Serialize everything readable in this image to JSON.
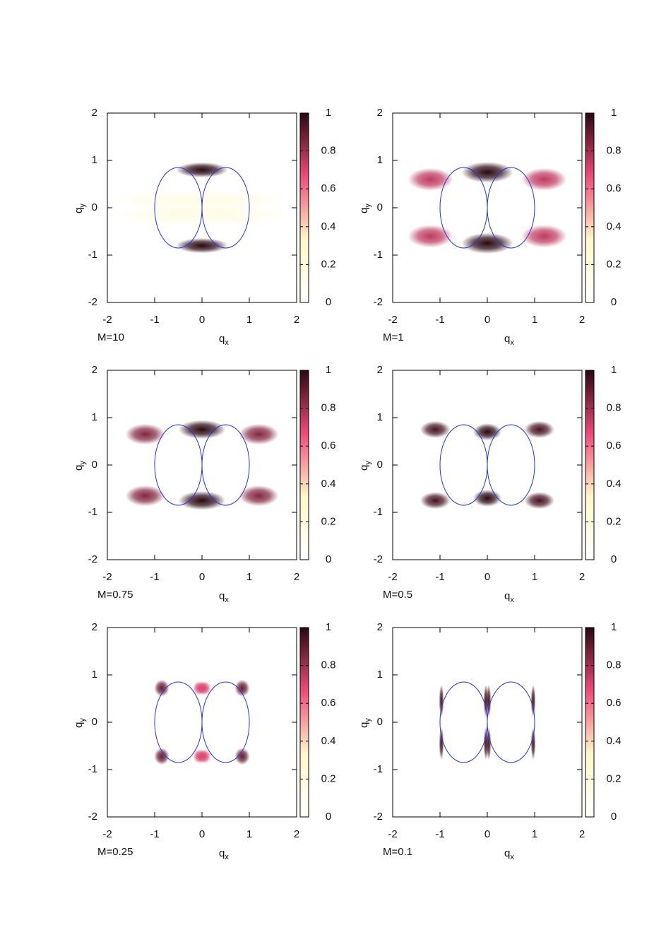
{
  "chart_data": [
    {
      "type": "heatmap",
      "annotation": "M=10",
      "xlabel": "qx",
      "ylabel": "qy",
      "xlim": [
        -2,
        2
      ],
      "ylim": [
        -2,
        2
      ],
      "xticks": [
        -2,
        -1,
        0,
        1,
        2
      ],
      "yticks": [
        -2,
        -1,
        0,
        1,
        2
      ],
      "zlim": [
        0,
        1
      ],
      "zticks": [
        0,
        0.2,
        0.4,
        0.6,
        0.8,
        1
      ],
      "colors": [
        "#ffffff",
        "#fff8c8",
        "#f04a7a",
        "#2a0812"
      ],
      "x": [
        0,
        0,
        0,
        0
      ],
      "y": [
        0.8,
        -0.8,
        0.15,
        -0.15
      ],
      "values": [
        1,
        1,
        0.15,
        0.15
      ],
      "rx": [
        0.55,
        0.55,
        1.9,
        1.9
      ],
      "ry": [
        0.16,
        0.16,
        0.22,
        0.22
      ],
      "ellipses": {
        "color": "#2233dd",
        "cx": [
          -0.5,
          0.5
        ],
        "cy": [
          0,
          0
        ],
        "rx": [
          0.5,
          0.5
        ],
        "ry": [
          0.85,
          0.85
        ]
      }
    },
    {
      "type": "heatmap",
      "annotation": "M=1",
      "xlabel": "qx",
      "ylabel": "qy",
      "xlim": [
        -2,
        2
      ],
      "ylim": [
        -2,
        2
      ],
      "xticks": [
        -2,
        -1,
        0,
        1,
        2
      ],
      "yticks": [
        -2,
        -1,
        0,
        1,
        2
      ],
      "zlim": [
        0,
        1
      ],
      "zticks": [
        0,
        0.2,
        0.4,
        0.6,
        0.8,
        1
      ],
      "colors": [
        "#ffffff",
        "#fff8c8",
        "#f04a7a",
        "#2a0812"
      ],
      "x": [
        0,
        0,
        -1.2,
        1.2,
        -1.2,
        1.2
      ],
      "y": [
        0.75,
        -0.75,
        0.6,
        0.6,
        -0.6,
        -0.6
      ],
      "values": [
        1,
        1,
        0.75,
        0.75,
        0.75,
        0.75
      ],
      "rx": [
        0.55,
        0.55,
        0.48,
        0.48,
        0.48,
        0.48
      ],
      "ry": [
        0.22,
        0.22,
        0.24,
        0.24,
        0.24,
        0.24
      ],
      "ellipses": {
        "color": "#2233dd",
        "cx": [
          -0.5,
          0.5
        ],
        "cy": [
          0,
          0
        ],
        "rx": [
          0.5,
          0.5
        ],
        "ry": [
          0.85,
          0.85
        ]
      }
    },
    {
      "type": "heatmap",
      "annotation": "M=0.75",
      "xlabel": "qx",
      "ylabel": "qy",
      "xlim": [
        -2,
        2
      ],
      "ylim": [
        -2,
        2
      ],
      "xticks": [
        -2,
        -1,
        0,
        1,
        2
      ],
      "yticks": [
        -2,
        -1,
        0,
        1,
        2
      ],
      "zlim": [
        0,
        1
      ],
      "zticks": [
        0,
        0.2,
        0.4,
        0.6,
        0.8,
        1
      ],
      "colors": [
        "#ffffff",
        "#fff8c8",
        "#f04a7a",
        "#2a0812"
      ],
      "x": [
        0,
        0,
        -1.2,
        1.2,
        -1.2,
        1.2
      ],
      "y": [
        0.75,
        -0.75,
        0.65,
        0.65,
        -0.65,
        -0.65
      ],
      "values": [
        1,
        1,
        0.85,
        0.85,
        0.85,
        0.85
      ],
      "rx": [
        0.5,
        0.5,
        0.42,
        0.42,
        0.42,
        0.42
      ],
      "ry": [
        0.2,
        0.2,
        0.22,
        0.22,
        0.22,
        0.22
      ],
      "ellipses": {
        "color": "#2233dd",
        "cx": [
          -0.5,
          0.5
        ],
        "cy": [
          0,
          0
        ],
        "rx": [
          0.5,
          0.5
        ],
        "ry": [
          0.85,
          0.85
        ]
      }
    },
    {
      "type": "heatmap",
      "annotation": "M=0.5",
      "xlabel": "qx",
      "ylabel": "qy",
      "xlim": [
        -2,
        2
      ],
      "ylim": [
        -2,
        2
      ],
      "xticks": [
        -2,
        -1,
        0,
        1,
        2
      ],
      "yticks": [
        -2,
        -1,
        0,
        1,
        2
      ],
      "zlim": [
        0,
        1
      ],
      "zticks": [
        0,
        0.2,
        0.4,
        0.6,
        0.8,
        1
      ],
      "colors": [
        "#ffffff",
        "#fff8c8",
        "#f04a7a",
        "#2a0812"
      ],
      "x": [
        0,
        0,
        -1.1,
        1.1,
        -1.1,
        1.1
      ],
      "y": [
        0.7,
        -0.7,
        0.75,
        0.75,
        -0.75,
        -0.75
      ],
      "values": [
        1,
        1,
        0.95,
        0.95,
        0.95,
        0.95
      ],
      "rx": [
        0.3,
        0.3,
        0.32,
        0.32,
        0.32,
        0.32
      ],
      "ry": [
        0.18,
        0.18,
        0.18,
        0.18,
        0.18,
        0.18
      ],
      "ellipses": {
        "color": "#2233dd",
        "cx": [
          -0.5,
          0.5
        ],
        "cy": [
          0,
          0
        ],
        "rx": [
          0.5,
          0.5
        ],
        "ry": [
          0.85,
          0.85
        ]
      }
    },
    {
      "type": "heatmap",
      "annotation": "M=0.25",
      "xlabel": "qx",
      "ylabel": "qy",
      "xlim": [
        -2,
        2
      ],
      "ylim": [
        -2,
        2
      ],
      "xticks": [
        -2,
        -1,
        0,
        1,
        2
      ],
      "yticks": [
        -2,
        -1,
        0,
        1,
        2
      ],
      "zlim": [
        0,
        1
      ],
      "zticks": [
        0,
        0.2,
        0.4,
        0.6,
        0.8,
        1
      ],
      "colors": [
        "#ffffff",
        "#fff8c8",
        "#f04a7a",
        "#2a0812"
      ],
      "x": [
        -0.85,
        0.85,
        -0.85,
        0.85,
        -0.05,
        0.05,
        -0.05,
        0.05
      ],
      "y": [
        0.72,
        0.72,
        -0.72,
        -0.72,
        0.72,
        0.72,
        -0.72,
        -0.72
      ],
      "values": [
        0.9,
        0.9,
        0.9,
        0.9,
        0.7,
        0.7,
        0.7,
        0.7
      ],
      "rx": [
        0.16,
        0.16,
        0.16,
        0.16,
        0.14,
        0.14,
        0.14,
        0.14
      ],
      "ry": [
        0.18,
        0.18,
        0.18,
        0.18,
        0.15,
        0.15,
        0.15,
        0.15
      ],
      "ellipses": {
        "color": "#2233dd",
        "cx": [
          -0.5,
          0.5
        ],
        "cy": [
          0,
          0
        ],
        "rx": [
          0.5,
          0.5
        ],
        "ry": [
          0.85,
          0.85
        ]
      }
    },
    {
      "type": "heatmap",
      "annotation": "M=0.1",
      "xlabel": "qx",
      "ylabel": "qy",
      "xlim": [
        -2,
        2
      ],
      "ylim": [
        -2,
        2
      ],
      "xticks": [
        -2,
        -1,
        0,
        1,
        2
      ],
      "yticks": [
        -2,
        -1,
        0,
        1,
        2
      ],
      "zlim": [
        0,
        1
      ],
      "zticks": [
        0,
        0.2,
        0.4,
        0.6,
        0.8,
        1
      ],
      "colors": [
        "#ffffff",
        "#fff8c8",
        "#f04a7a",
        "#2a0812"
      ],
      "x": [
        -0.97,
        0.97,
        -0.97,
        0.97,
        -0.03,
        0.03,
        -0.03,
        0.03
      ],
      "y": [
        0.45,
        0.45,
        -0.45,
        -0.45,
        0.45,
        0.45,
        -0.45,
        -0.45
      ],
      "values": [
        0.95,
        0.95,
        0.95,
        0.95,
        0.95,
        0.95,
        0.95,
        0.95
      ],
      "rx": [
        0.05,
        0.05,
        0.05,
        0.05,
        0.05,
        0.05,
        0.05,
        0.05
      ],
      "ry": [
        0.35,
        0.35,
        0.35,
        0.35,
        0.35,
        0.35,
        0.35,
        0.35
      ],
      "ellipses": {
        "color": "#2233dd",
        "cx": [
          -0.5,
          0.5
        ],
        "cy": [
          0,
          0
        ],
        "rx": [
          0.5,
          0.5
        ],
        "ry": [
          0.85,
          0.85
        ]
      }
    }
  ]
}
